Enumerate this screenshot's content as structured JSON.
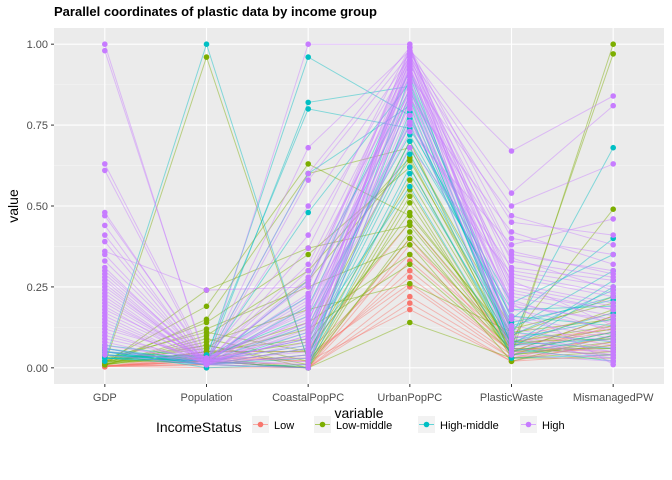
{
  "chart_data": {
    "type": "line",
    "title": "Parallel coordinates of plastic data by income group",
    "xlabel": "variable",
    "ylabel": "value",
    "categories": [
      "GDP",
      "Population",
      "CoastalPopPC",
      "UrbanPopPC",
      "PlasticWaste",
      "MismanagedPW"
    ],
    "ylim": [
      -0.05,
      1.05
    ],
    "yticks": [
      0.0,
      0.25,
      0.5,
      0.75,
      1.0
    ],
    "ytick_labels": [
      "0.00",
      "0.25",
      "0.50",
      "0.75",
      "1.00"
    ],
    "grid": true,
    "legend_position": "bottom",
    "legend": {
      "title": "IncomeStatus",
      "entries": [
        {
          "name": "Low",
          "color": "#F8766D"
        },
        {
          "name": "Low-middle",
          "color": "#7CAE00"
        },
        {
          "name": "High-middle",
          "color": "#00BFC4"
        },
        {
          "name": "High",
          "color": "#C77CFF"
        }
      ]
    },
    "series": [
      {
        "name": "Low",
        "color": "#F8766D",
        "lines": [
          [
            0.005,
            0.02,
            0.0,
            0.25,
            0.03,
            0.1
          ],
          [
            0.004,
            0.03,
            0.02,
            0.3,
            0.05,
            0.16
          ],
          [
            0.006,
            0.01,
            0.0,
            0.2,
            0.02,
            0.08
          ],
          [
            0.003,
            0.05,
            0.05,
            0.35,
            0.08,
            0.12
          ],
          [
            0.007,
            0.02,
            0.01,
            0.4,
            0.04,
            0.14
          ],
          [
            0.005,
            0.0,
            0.0,
            0.33,
            0.06,
            0.05
          ],
          [
            0.004,
            0.03,
            0.03,
            0.28,
            0.05,
            0.09
          ],
          [
            0.006,
            0.02,
            0.0,
            0.22,
            0.03,
            0.07
          ],
          [
            0.008,
            0.01,
            0.06,
            0.45,
            0.07,
            0.11
          ],
          [
            0.003,
            0.04,
            0.02,
            0.18,
            0.02,
            0.04
          ],
          [
            0.005,
            0.02,
            0.0,
            0.38,
            0.09,
            0.17
          ],
          [
            0.004,
            0.01,
            0.04,
            0.26,
            0.04,
            0.13
          ]
        ]
      },
      {
        "name": "Low-middle",
        "color": "#7CAE00",
        "lines": [
          [
            0.01,
            0.96,
            0.02,
            0.55,
            0.04,
            1.0
          ],
          [
            0.01,
            0.24,
            0.37,
            0.44,
            0.06,
            0.97
          ],
          [
            0.02,
            0.19,
            0.63,
            0.47,
            0.09,
            0.49
          ],
          [
            0.01,
            0.15,
            0.6,
            0.68,
            0.12,
            0.2
          ],
          [
            0.02,
            0.14,
            0.35,
            0.62,
            0.05,
            0.16
          ],
          [
            0.03,
            0.11,
            0.05,
            0.48,
            0.08,
            0.13
          ],
          [
            0.01,
            0.09,
            0.02,
            0.4,
            0.07,
            0.18
          ],
          [
            0.02,
            0.07,
            0.0,
            0.42,
            0.05,
            0.06
          ],
          [
            0.01,
            0.07,
            0.01,
            0.53,
            0.03,
            0.05
          ],
          [
            0.02,
            0.06,
            0.27,
            0.64,
            0.1,
            0.22
          ],
          [
            0.01,
            0.05,
            0.09,
            0.7,
            0.04,
            0.08
          ],
          [
            0.03,
            0.04,
            0.14,
            0.35,
            0.06,
            0.06
          ],
          [
            0.02,
            0.03,
            0.0,
            0.14,
            0.03,
            0.03
          ],
          [
            0.01,
            0.08,
            0.18,
            0.26,
            0.11,
            0.15
          ],
          [
            0.02,
            0.12,
            0.25,
            0.38,
            0.02,
            0.1
          ],
          [
            0.01,
            0.1,
            0.3,
            0.65,
            0.07,
            0.12
          ],
          [
            0.02,
            0.02,
            0.0,
            0.51,
            0.04,
            0.07
          ],
          [
            0.01,
            0.05,
            0.05,
            0.58,
            0.06,
            0.04
          ],
          [
            0.02,
            0.03,
            0.08,
            0.45,
            0.08,
            0.09
          ],
          [
            0.01,
            0.04,
            0.12,
            0.32,
            0.05,
            0.11
          ]
        ]
      },
      {
        "name": "High-middle",
        "color": "#00BFC4",
        "lines": [
          [
            0.02,
            1.0,
            0.02,
            0.62,
            0.06,
            0.02
          ],
          [
            0.04,
            0.03,
            0.96,
            0.78,
            0.1,
            0.68
          ],
          [
            0.05,
            0.02,
            0.82,
            0.87,
            0.15,
            0.4
          ],
          [
            0.03,
            0.04,
            0.8,
            0.74,
            0.2,
            0.35
          ],
          [
            0.06,
            0.02,
            0.48,
            0.88,
            0.12,
            0.3
          ],
          [
            0.04,
            0.02,
            0.6,
            0.81,
            0.07,
            0.27
          ],
          [
            0.05,
            0.03,
            0.22,
            0.92,
            0.06,
            0.25
          ],
          [
            0.03,
            0.01,
            0.11,
            0.77,
            0.13,
            0.22
          ],
          [
            0.04,
            0.02,
            0.07,
            0.7,
            0.18,
            0.19
          ],
          [
            0.06,
            0.01,
            0.04,
            0.66,
            0.09,
            0.15
          ],
          [
            0.03,
            0.02,
            0.19,
            0.84,
            0.05,
            0.11
          ],
          [
            0.05,
            0.0,
            0.01,
            0.9,
            0.11,
            0.08
          ],
          [
            0.04,
            0.01,
            0.0,
            0.6,
            0.08,
            0.06
          ],
          [
            0.07,
            0.03,
            0.16,
            0.72,
            0.16,
            0.13
          ],
          [
            0.03,
            0.02,
            0.09,
            0.56,
            0.04,
            0.1
          ],
          [
            0.05,
            0.01,
            0.03,
            0.83,
            0.07,
            0.09
          ],
          [
            0.04,
            0.02,
            0.13,
            0.75,
            0.14,
            0.21
          ],
          [
            0.06,
            0.01,
            0.06,
            0.68,
            0.1,
            0.24
          ],
          [
            0.03,
            0.02,
            0.0,
            0.79,
            0.03,
            0.04
          ],
          [
            0.05,
            0.01,
            0.27,
            0.86,
            0.08,
            0.17
          ]
        ]
      },
      {
        "name": "High",
        "color": "#C77CFF",
        "lines": [
          [
            1.0,
            0.01,
            1.0,
            1.0,
            0.1,
            0.02
          ],
          [
            0.98,
            0.02,
            0.6,
            0.99,
            0.2,
            0.01
          ],
          [
            0.63,
            0.02,
            0.68,
            0.98,
            0.67,
            0.84
          ],
          [
            0.61,
            0.01,
            0.58,
            0.97,
            0.54,
            0.81
          ],
          [
            0.48,
            0.02,
            0.5,
            0.96,
            0.5,
            0.63
          ],
          [
            0.47,
            0.03,
            0.41,
            0.95,
            0.45,
            0.41
          ],
          [
            0.44,
            0.01,
            0.37,
            0.99,
            0.4,
            0.35
          ],
          [
            0.41,
            0.02,
            0.32,
            0.94,
            0.35,
            0.3
          ],
          [
            0.39,
            0.01,
            0.28,
            0.92,
            0.33,
            0.28
          ],
          [
            0.36,
            0.24,
            0.25,
            0.97,
            0.3,
            0.25
          ],
          [
            0.33,
            0.02,
            0.22,
            0.9,
            0.28,
            0.22
          ],
          [
            0.31,
            0.01,
            0.2,
            0.96,
            0.26,
            0.2
          ],
          [
            0.29,
            0.02,
            0.18,
            0.88,
            0.24,
            0.18
          ],
          [
            0.27,
            0.01,
            0.16,
            0.93,
            0.22,
            0.16
          ],
          [
            0.25,
            0.02,
            0.14,
            0.86,
            0.2,
            0.14
          ],
          [
            0.23,
            0.01,
            0.12,
            0.91,
            0.18,
            0.12
          ],
          [
            0.21,
            0.02,
            0.11,
            0.84,
            0.16,
            0.1
          ],
          [
            0.19,
            0.01,
            0.1,
            0.95,
            0.15,
            0.09
          ],
          [
            0.17,
            0.02,
            0.09,
            0.82,
            0.13,
            0.08
          ],
          [
            0.15,
            0.01,
            0.08,
            0.89,
            0.12,
            0.07
          ],
          [
            0.13,
            0.02,
            0.07,
            0.97,
            0.11,
            0.06
          ],
          [
            0.11,
            0.01,
            0.06,
            0.8,
            0.1,
            0.05
          ],
          [
            0.09,
            0.02,
            0.05,
            0.93,
            0.09,
            0.04
          ],
          [
            0.08,
            0.01,
            0.04,
            0.87,
            0.08,
            0.03
          ],
          [
            0.07,
            0.02,
            0.03,
            0.99,
            0.07,
            0.05
          ],
          [
            0.06,
            0.01,
            0.02,
            0.85,
            0.06,
            0.04
          ],
          [
            0.05,
            0.02,
            0.01,
            0.78,
            0.05,
            0.03
          ],
          [
            0.04,
            0.01,
            0.0,
            0.96,
            0.04,
            0.02
          ],
          [
            0.12,
            0.03,
            0.15,
            0.73,
            0.38,
            0.46
          ],
          [
            0.2,
            0.02,
            0.23,
            0.83,
            0.42,
            0.32
          ],
          [
            0.26,
            0.01,
            0.19,
            0.75,
            0.31,
            0.27
          ],
          [
            0.35,
            0.02,
            0.3,
            0.9,
            0.47,
            0.38
          ],
          [
            0.14,
            0.01,
            0.13,
            0.68,
            0.29,
            0.23
          ],
          [
            0.1,
            0.02,
            0.09,
            0.94,
            0.25,
            0.19
          ],
          [
            0.18,
            0.03,
            0.17,
            0.81,
            0.21,
            0.11
          ],
          [
            0.22,
            0.01,
            0.14,
            0.92,
            0.19,
            0.15
          ],
          [
            0.3,
            0.02,
            0.26,
            0.98,
            0.36,
            0.29
          ],
          [
            0.16,
            0.01,
            0.1,
            0.76,
            0.27,
            0.13
          ],
          [
            0.24,
            0.02,
            0.21,
            0.99,
            0.23,
            0.18
          ],
          [
            0.28,
            0.01,
            0.27,
            0.85,
            0.34,
            0.24
          ]
        ]
      }
    ]
  }
}
